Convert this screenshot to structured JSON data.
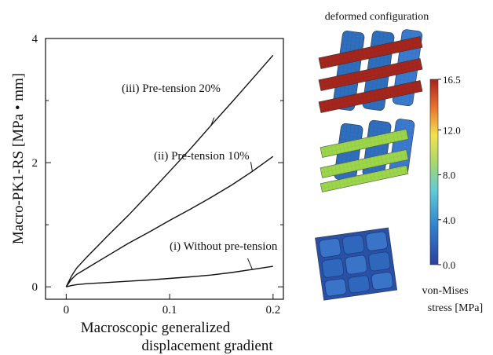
{
  "chart_data": {
    "type": "line",
    "ylabel": "Macro-PK1-RS [MPa • mm]",
    "xlabel_line1": "Macroscopic generalized",
    "xlabel_line2": "displacement gradient",
    "xlim": [
      -0.02,
      0.21
    ],
    "ylim": [
      -0.2,
      4.0
    ],
    "x_ticks": [
      0,
      0.1,
      0.2
    ],
    "x_tick_labels": [
      "0",
      "0.1",
      "0.2"
    ],
    "y_ticks": [
      0,
      2,
      4
    ],
    "y_tick_labels": [
      "0",
      "2",
      "4"
    ],
    "y_minor_ticks": [
      1,
      3
    ],
    "series": [
      {
        "name": "(i) Without pre-tension",
        "x": [
          0,
          0.005,
          0.01,
          0.02,
          0.04,
          0.06,
          0.08,
          0.1,
          0.12,
          0.14,
          0.16,
          0.18,
          0.2
        ],
        "y": [
          0,
          0.02,
          0.035,
          0.05,
          0.07,
          0.09,
          0.11,
          0.135,
          0.16,
          0.19,
          0.23,
          0.28,
          0.33
        ]
      },
      {
        "name": "(ii) Pre-tension 10%",
        "x": [
          0,
          0.005,
          0.01,
          0.02,
          0.04,
          0.06,
          0.08,
          0.1,
          0.12,
          0.14,
          0.16,
          0.18,
          0.2
        ],
        "y": [
          0,
          0.12,
          0.2,
          0.3,
          0.5,
          0.7,
          0.88,
          1.07,
          1.25,
          1.44,
          1.64,
          1.86,
          2.1
        ]
      },
      {
        "name": "(iii) Pre-tension 20%",
        "x": [
          0,
          0.005,
          0.01,
          0.02,
          0.04,
          0.06,
          0.08,
          0.1,
          0.12,
          0.14,
          0.16,
          0.18,
          0.2
        ],
        "y": [
          0,
          0.17,
          0.3,
          0.48,
          0.82,
          1.15,
          1.5,
          1.86,
          2.22,
          2.6,
          2.97,
          3.35,
          3.73
        ]
      }
    ]
  },
  "panel": {
    "title": "deformed configuration",
    "colorbar_ticks": [
      "16.5",
      "12.0",
      "8.0",
      "4.0",
      "0.0"
    ],
    "colorbar_values": [
      16.5,
      12.0,
      8.0,
      4.0,
      0.0
    ],
    "colorbar_max": 16.5,
    "colorbar_title_line1": "von-Mises",
    "colorbar_title_line2": "stress [MPa]",
    "colors": {
      "blue_tow": "#2f6fbe",
      "blue_dark": "#1f4f9a",
      "red_tow": "#a5261d",
      "green_tow": "#9cd64a",
      "outline": "#333333"
    }
  }
}
